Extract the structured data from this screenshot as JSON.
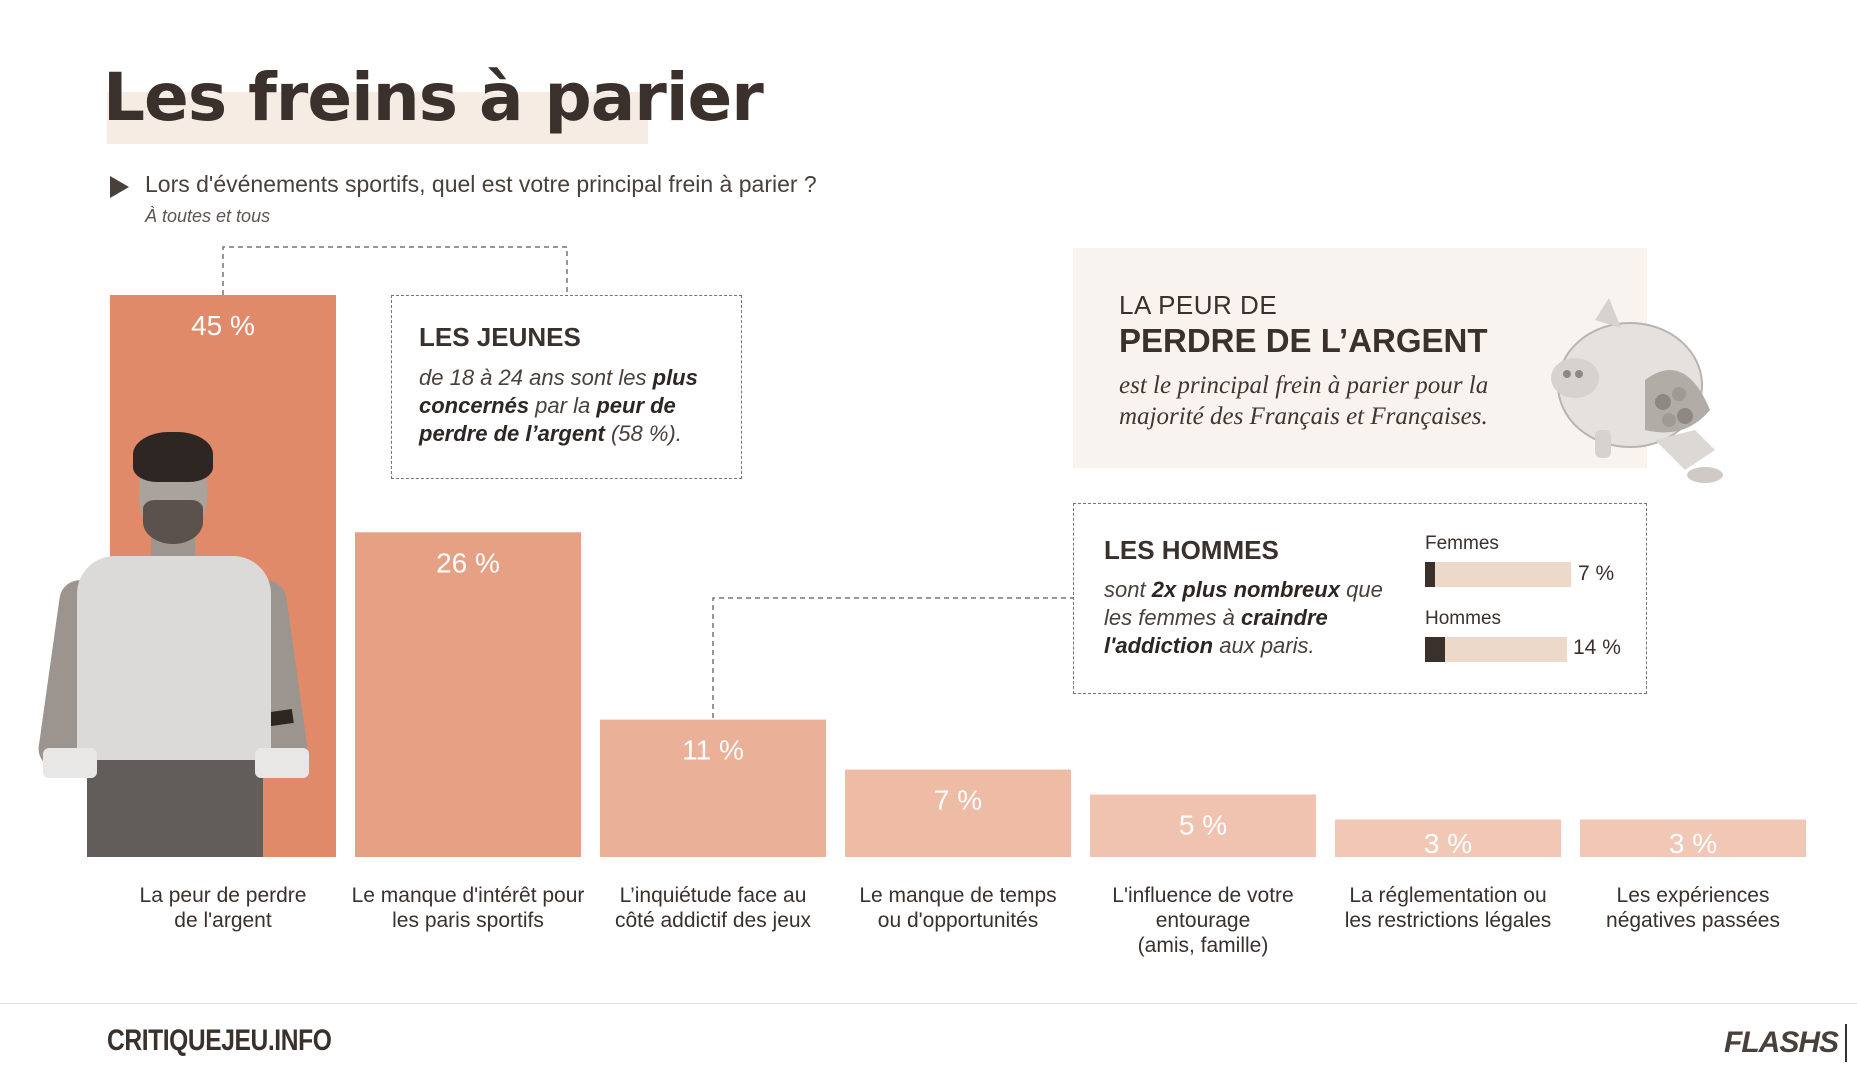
{
  "title": "Les freins à parier",
  "question": "Lors d'événements sportifs, quel est votre principal frein à parier ?",
  "question_sub": "À toutes et tous",
  "colors": {
    "bars": [
      "#e08a6a",
      "#e6a083",
      "#ebb098",
      "#eebba5",
      "#f0c3b0",
      "#f1c7b5",
      "#f1c7b5"
    ],
    "text": "#3a302c",
    "gauge_track": "#ecd9ca",
    "gauge_fill": "#3a302c"
  },
  "chart_data": {
    "type": "bar",
    "categories": [
      [
        "La peur de perdre",
        "de l'argent"
      ],
      [
        "Le manque d'intérêt pour",
        "les paris sportifs"
      ],
      [
        "L’inquiétude face au",
        "côté addictif des jeux"
      ],
      [
        "Le manque de temps",
        "ou d'opportunités"
      ],
      [
        "L'influence de votre",
        "entourage",
        "(amis, famille)"
      ],
      [
        "La réglementation ou",
        "les restrictions légales"
      ],
      [
        "Les expériences",
        "négatives passées"
      ]
    ],
    "values": [
      45,
      26,
      11,
      7,
      5,
      3,
      3
    ],
    "value_labels": [
      "45 %",
      "26 %",
      "11 %",
      "7 %",
      "5 %",
      "3 %",
      "3 %"
    ],
    "ylim": [
      0,
      45
    ],
    "grid": false,
    "legend": "none"
  },
  "callout_jeunes": {
    "title": "LES JEUNES",
    "t1": "de 18 à 24 ans sont les ",
    "b1": "plus concernés",
    "t2": " par la ",
    "b2": "peur de perdre de l’argent",
    "t3": " (58 %)."
  },
  "highlight_peur": {
    "kicker": "LA PEUR DE",
    "title": "PERDRE DE L’ARGENT",
    "text": "est le principal frein à parier pour la majorité des Français et Françaises."
  },
  "callout_hommes": {
    "title": "LES HOMMES",
    "t1": "sont ",
    "b1": "2x plus nombreux",
    "t2": " que les femmes à ",
    "b2": "craindre l'addiction",
    "t3": " aux paris.",
    "gauges": [
      {
        "label": "Femmes",
        "value": 7,
        "value_label": "7 %"
      },
      {
        "label": "Hommes",
        "value": 14,
        "value_label": "14 %"
      }
    ]
  },
  "footer": {
    "brand": "CRITIQUEJEU.INFO",
    "logo": "FLASHS"
  },
  "icons": {
    "question_marker": "play-triangle-icon",
    "illustration": "piggy-bank-icon",
    "photo": "person-photo"
  }
}
